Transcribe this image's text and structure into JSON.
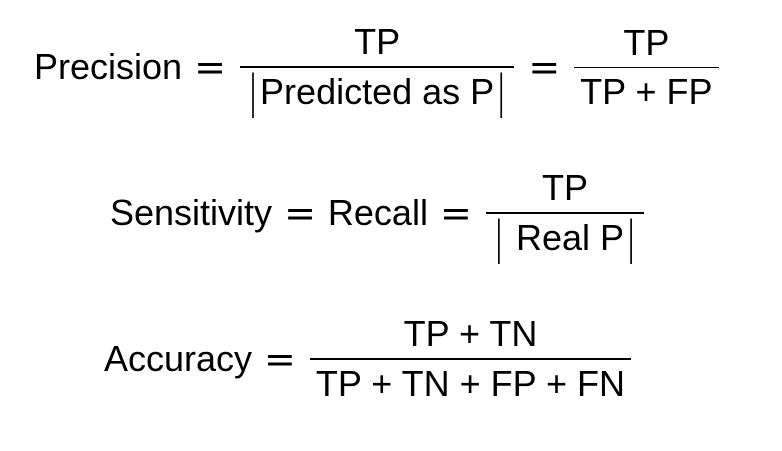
{
  "precision": {
    "lhs": "Precision",
    "eq1": "=",
    "frac1": {
      "num": "TP",
      "den_open": "|",
      "den_text": "Predicted as P",
      "den_close": "|"
    },
    "eq2": "=",
    "frac2": {
      "num": "TP",
      "den": "TP + FP"
    }
  },
  "recall": {
    "lhs1": "Sensitivity",
    "eq1": "=",
    "lhs2": "Recall",
    "eq2": "=",
    "frac": {
      "num": "TP",
      "den_open": "|",
      "den_text": " Real P",
      "den_close": "|"
    }
  },
  "accuracy": {
    "lhs": "Accuracy",
    "eq": "=",
    "frac": {
      "num": "TP + TN",
      "den": "TP + TN + FP + FN"
    }
  }
}
